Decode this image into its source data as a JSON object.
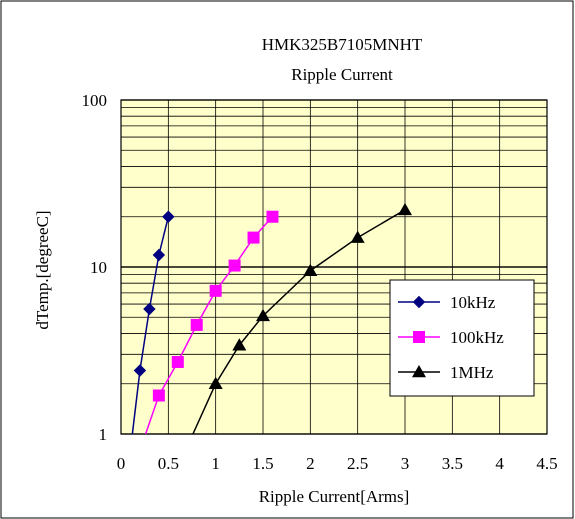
{
  "chart_data": {
    "type": "line",
    "title": "HMK325B7105MNHT",
    "subtitle": "Ripple Current",
    "xlabel": "Ripple Current[Arms]",
    "ylabel": "dTemp.[degreeC]",
    "xlim": [
      0,
      4.5
    ],
    "ylim": [
      1,
      100
    ],
    "yscale": "log",
    "xticks": [
      "0",
      "0.5",
      "1",
      "1.5",
      "2",
      "2.5",
      "3",
      "3.5",
      "4",
      "4.5"
    ],
    "yticks": [
      "1",
      "10",
      "100"
    ],
    "grid": true,
    "legend_position": "right",
    "plot_background": "#ffffcc",
    "series": [
      {
        "name": "10kHz",
        "color": "#000080",
        "marker": "diamond",
        "points": [
          [
            0.12,
            1.0
          ],
          [
            0.2,
            2.4
          ],
          [
            0.3,
            5.6
          ],
          [
            0.4,
            11.8
          ],
          [
            0.5,
            20.0
          ]
        ]
      },
      {
        "name": "100kHz",
        "color": "#ff00ff",
        "marker": "square",
        "points": [
          [
            0.26,
            1.0
          ],
          [
            0.4,
            1.7
          ],
          [
            0.6,
            2.7
          ],
          [
            0.8,
            4.5
          ],
          [
            1.0,
            7.2
          ],
          [
            1.2,
            10.2
          ],
          [
            1.4,
            15.0
          ],
          [
            1.6,
            20.0
          ]
        ]
      },
      {
        "name": "1MHz",
        "color": "#000000",
        "marker": "triangle",
        "points": [
          [
            0.76,
            1.0
          ],
          [
            1.0,
            2.0
          ],
          [
            1.25,
            3.4
          ],
          [
            1.5,
            5.1
          ],
          [
            2.0,
            9.5
          ],
          [
            2.5,
            15.0
          ],
          [
            3.0,
            22.0
          ]
        ]
      }
    ]
  }
}
